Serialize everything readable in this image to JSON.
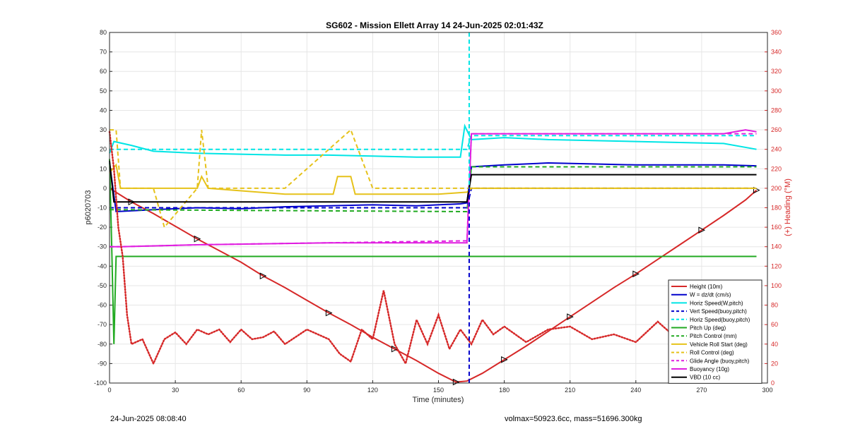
{
  "footer": {
    "left": "24-Jun-2025 08:08:40",
    "right": "volmax=50923.6cc, mass=51696.300kg"
  },
  "chart_data": {
    "type": "line",
    "title": "SG602 - Mission Ellett Array 14 24-Jun-2025 02:01:43Z",
    "xlabel": "Time (minutes)",
    "ylabel": "p6020703",
    "ylabel_right": "(+) Heading (°M)",
    "xlim": [
      0,
      300
    ],
    "ylim": [
      -100,
      80
    ],
    "ylim_right": [
      0,
      360
    ],
    "xticks": [
      0,
      30,
      60,
      90,
      120,
      150,
      180,
      210,
      240,
      270,
      300
    ],
    "yticks": [
      -100,
      -90,
      -80,
      -70,
      -60,
      -50,
      -40,
      -30,
      -20,
      -10,
      0,
      10,
      20,
      30,
      40,
      50,
      60,
      70,
      80
    ],
    "yticks_right": [
      0,
      20,
      40,
      60,
      80,
      100,
      120,
      140,
      160,
      180,
      200,
      220,
      240,
      260,
      280,
      300,
      320,
      340,
      360
    ],
    "grid": true,
    "legend_position": "bottom-right",
    "apogee_x": 164,
    "legend": [
      {
        "label": "Height (10m)",
        "color": "#d62828",
        "style": "solid"
      },
      {
        "label": "W = dz/dt (cm/s)",
        "color": "#0000cc",
        "style": "solid"
      },
      {
        "label": "Horiz Speed(W,pitch)",
        "color": "#00e5e5",
        "style": "solid"
      },
      {
        "label": "Vert Speed(buoy,pitch)",
        "color": "#0000cc",
        "style": "dashed"
      },
      {
        "label": "Horiz Speed(buoy,pitch)",
        "color": "#00e5e5",
        "style": "dashed"
      },
      {
        "label": "Pitch Up (deg)",
        "color": "#22aa22",
        "style": "solid"
      },
      {
        "label": "Pitch Control (mm)",
        "color": "#22aa22",
        "style": "dashed"
      },
      {
        "label": "Vehicle Roll Start (deg)",
        "color": "#e6c21a",
        "style": "solid"
      },
      {
        "label": "Roll Control (deg)",
        "color": "#e6c21a",
        "style": "dashed"
      },
      {
        "label": "Glide Angle (buoy,pitch)",
        "color": "#e01ee0",
        "style": "dashed"
      },
      {
        "label": "Buoyancy (10g)",
        "color": "#e01ee0",
        "style": "solid"
      },
      {
        "label": "VBD (10 cc)",
        "color": "#000000",
        "style": "solid"
      }
    ],
    "series": [
      {
        "name": "Height (10m)",
        "color": "#d62828",
        "x": [
          0,
          10,
          20,
          30,
          40,
          50,
          60,
          70,
          80,
          90,
          100,
          110,
          120,
          130,
          140,
          150,
          158,
          163,
          170,
          180,
          190,
          200,
          210,
          220,
          230,
          240,
          250,
          260,
          270,
          280,
          290,
          295
        ],
        "y": [
          0,
          -7,
          -13,
          -19.5,
          -26,
          -32,
          -38,
          -45,
          -51,
          -57.5,
          -64,
          -70,
          -76.5,
          -82.5,
          -88.5,
          -95,
          -99.5,
          -99,
          -95,
          -88,
          -81,
          -73.5,
          -66,
          -58.5,
          -51,
          -44,
          -36.5,
          -29,
          -21.5,
          -14,
          -6,
          -1
        ]
      },
      {
        "name": "W = dz/dt (cm/s)",
        "color": "#0000cc",
        "x": [
          0,
          3,
          20,
          40,
          60,
          80,
          100,
          120,
          140,
          160,
          163,
          165,
          180,
          200,
          220,
          240,
          260,
          280,
          295
        ],
        "y": [
          13,
          -12,
          -11,
          -10,
          -10.5,
          -9.5,
          -9,
          -8.5,
          -9,
          -8,
          -7.5,
          11,
          12,
          13,
          12.5,
          12,
          12,
          12,
          11.5
        ]
      },
      {
        "name": "Horiz Speed(W,pitch)",
        "color": "#00e5e5",
        "x": [
          0,
          2,
          10,
          20,
          40,
          60,
          80,
          100,
          120,
          140,
          160,
          162,
          165,
          180,
          200,
          220,
          240,
          260,
          280,
          295
        ],
        "y": [
          18,
          24,
          22,
          19,
          18,
          17.5,
          17,
          17,
          16.5,
          16,
          16,
          32,
          25,
          26,
          25,
          24.5,
          24,
          23.5,
          23,
          20
        ]
      },
      {
        "name": "Vert Speed(buoy,pitch)",
        "color": "#0000cc",
        "x": [
          0,
          5,
          163,
          165,
          295
        ],
        "y": [
          -10,
          -10,
          -10,
          0,
          0
        ]
      },
      {
        "name": "Horiz Speed(buoy,pitch)",
        "color": "#00e5e5",
        "x": [
          0,
          5,
          163,
          165,
          295
        ],
        "y": [
          20,
          20,
          20,
          27,
          27
        ]
      },
      {
        "name": "Pitch Up (deg)",
        "color": "#22aa22",
        "x": [
          0,
          1,
          2,
          3,
          295
        ],
        "y": [
          15,
          -30,
          -80,
          -35,
          -35
        ]
      },
      {
        "name": "Pitch Control (mm)",
        "color": "#22aa22",
        "x": [
          0,
          5,
          163,
          165,
          295
        ],
        "y": [
          -11,
          -11,
          -12,
          11,
          11
        ]
      },
      {
        "name": "Vehicle Roll Start (deg)",
        "color": "#e6c21a",
        "x": [
          0,
          3,
          5,
          20,
          40,
          42,
          45,
          80,
          102,
          104,
          110,
          112,
          150,
          163,
          165,
          295
        ],
        "y": [
          8,
          12,
          0,
          0,
          0,
          6,
          0,
          -3,
          -3,
          6,
          6,
          -3,
          -3,
          -2,
          0,
          0
        ]
      },
      {
        "name": "Roll Control (deg)",
        "color": "#e6c21a",
        "x": [
          0,
          3,
          5,
          20,
          25,
          40,
          42,
          45,
          80,
          110,
          120,
          160,
          163,
          165,
          295
        ],
        "y": [
          30,
          30,
          0,
          0,
          -20,
          0,
          30,
          0,
          0,
          30,
          0,
          0,
          0,
          0,
          0
        ]
      },
      {
        "name": "Glide Angle (buoy,pitch)",
        "color": "#e01ee0",
        "x": [
          0,
          5,
          40,
          100,
          163,
          165,
          295
        ],
        "y": [
          -30,
          -30,
          -29,
          -28,
          -27,
          28,
          28
        ]
      },
      {
        "name": "Buoyancy (10g)",
        "color": "#e01ee0",
        "x": [
          0,
          5,
          40,
          100,
          163,
          165,
          280,
          290,
          295
        ],
        "y": [
          -30,
          -30,
          -29,
          -28,
          -28,
          28,
          28,
          30,
          29
        ]
      },
      {
        "name": "VBD (10 cc)",
        "color": "#000000",
        "x": [
          0,
          2,
          163,
          165,
          295
        ],
        "y": [
          14,
          -7,
          -7,
          7,
          7
        ]
      },
      {
        "name": "Heading",
        "color": "#d62828",
        "axis": "right",
        "x": [
          0,
          2,
          4,
          6,
          8,
          10,
          15,
          20,
          25,
          30,
          35,
          40,
          45,
          50,
          55,
          60,
          65,
          70,
          75,
          80,
          90,
          100,
          105,
          110,
          115,
          120,
          125,
          130,
          135,
          140,
          145,
          150,
          155,
          160,
          165,
          170,
          175,
          180,
          190,
          200,
          210,
          220,
          230,
          240,
          250,
          260,
          270,
          280,
          285,
          290,
          295
        ],
        "y": [
          258,
          220,
          160,
          130,
          70,
          40,
          45,
          20,
          45,
          52,
          40,
          55,
          50,
          55,
          42,
          55,
          45,
          47,
          53,
          40,
          55,
          45,
          30,
          22,
          55,
          45,
          95,
          40,
          20,
          65,
          40,
          70,
          35,
          55,
          40,
          65,
          50,
          58,
          42,
          55,
          58,
          45,
          50,
          42,
          63,
          43,
          38,
          40,
          52,
          35,
          15
        ]
      }
    ]
  }
}
